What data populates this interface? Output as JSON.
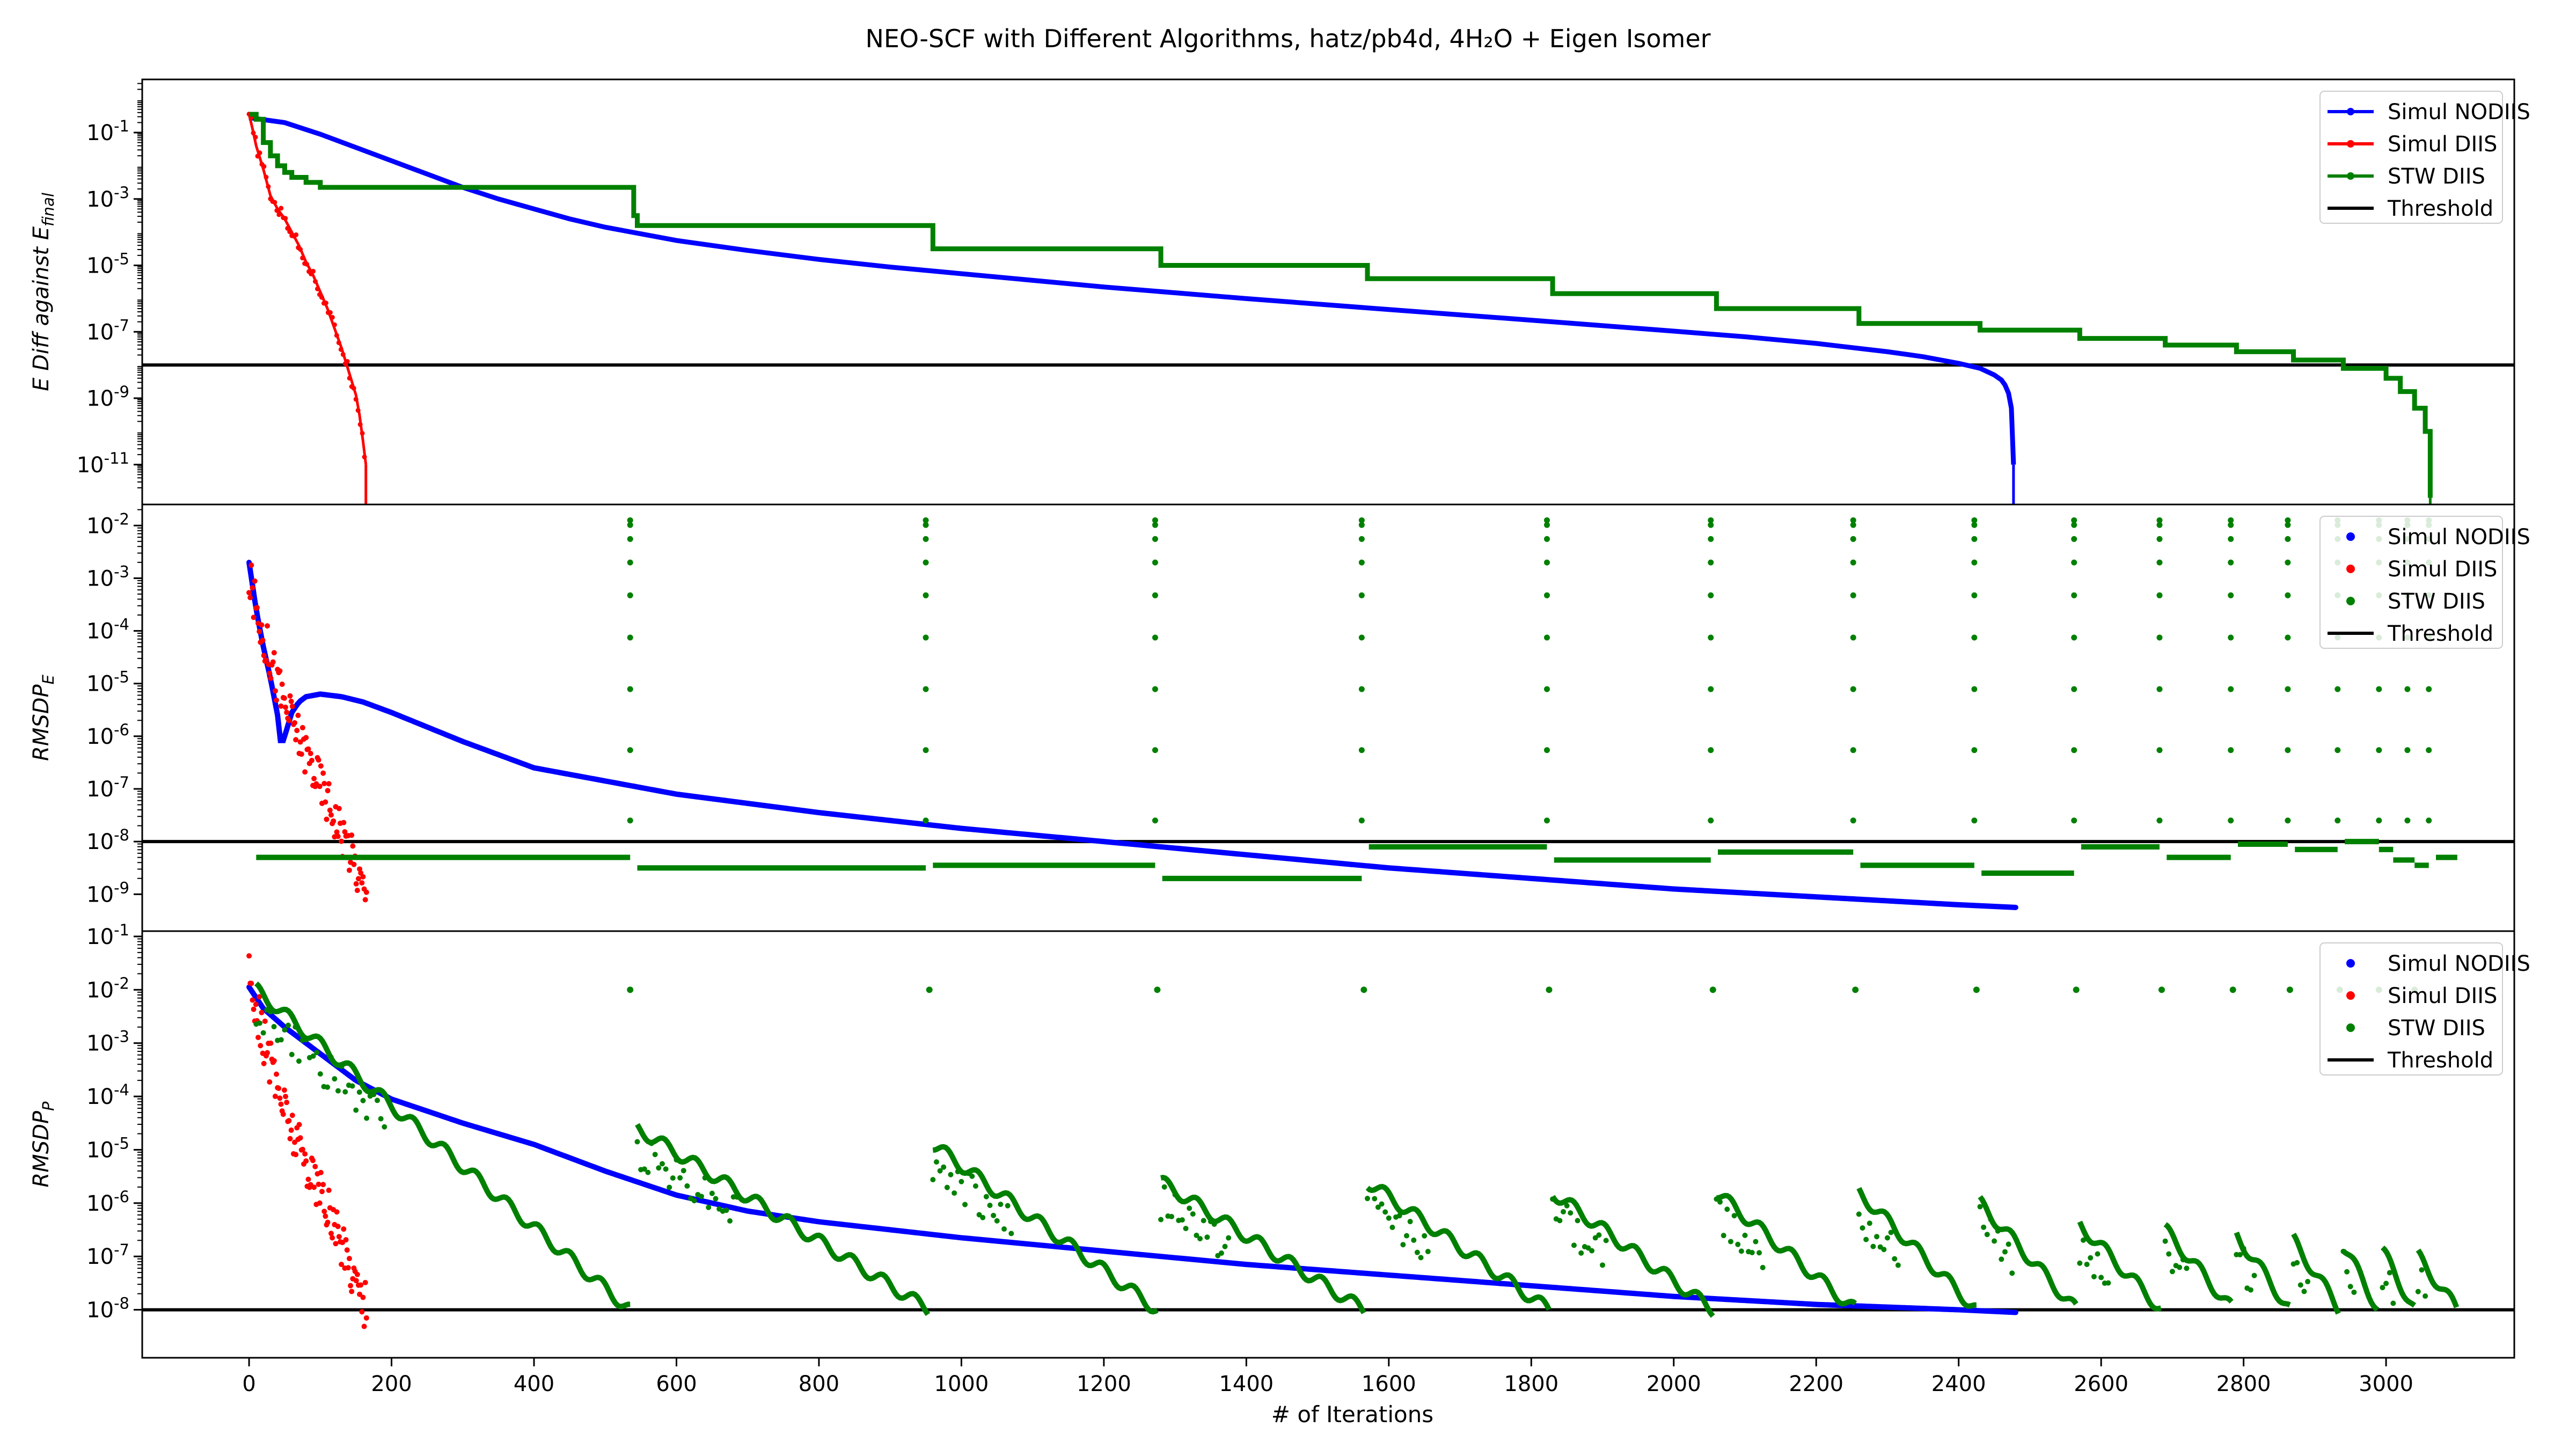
{
  "figure": {
    "title": "NEO-SCF with Different Algorithms, hatz/pb4d, 4H₂O + Eigen Isomer",
    "xlabel": "# of Iterations"
  },
  "chart_data": [
    {
      "type": "line",
      "ylabel": "E Diff against E_final",
      "yscale": "log",
      "ylim_exp": [
        -12.2,
        0.6
      ],
      "ytick_labels": [
        "10^-1",
        "10^-3",
        "10^-5",
        "10^-7",
        "10^-9",
        "10^-11"
      ],
      "ytick_exps": [
        -1,
        -3,
        -5,
        -7,
        -9,
        -11
      ],
      "xlim": [
        -150,
        3180
      ],
      "xticks": [
        0,
        200,
        400,
        600,
        800,
        1000,
        1200,
        1400,
        1600,
        1800,
        2000,
        2200,
        2400,
        2600,
        2800,
        3000
      ],
      "threshold_exp": -8,
      "legend": {
        "position": "upper right",
        "entries": [
          "Simul NODIIS",
          "Simul DIIS",
          "STW DIIS",
          "Threshold"
        ]
      },
      "series": [
        {
          "name": "Simul NODIIS",
          "color": "#0000ff",
          "style": "line-markers",
          "x": [
            0,
            50,
            100,
            150,
            200,
            250,
            300,
            350,
            400,
            450,
            500,
            600,
            700,
            800,
            900,
            1000,
            1200,
            1400,
            1600,
            1800,
            2000,
            2100,
            2200,
            2300,
            2350,
            2400,
            2430,
            2450,
            2460,
            2465,
            2470,
            2474,
            2477
          ],
          "y_exp": [
            -0.55,
            -0.7,
            -1.05,
            -1.45,
            -1.85,
            -2.25,
            -2.65,
            -3.0,
            -3.3,
            -3.6,
            -3.85,
            -4.25,
            -4.55,
            -4.82,
            -5.05,
            -5.25,
            -5.65,
            -6.0,
            -6.33,
            -6.65,
            -6.98,
            -7.15,
            -7.35,
            -7.6,
            -7.75,
            -7.95,
            -8.1,
            -8.3,
            -8.45,
            -8.6,
            -8.85,
            -9.3,
            -11.0
          ]
        },
        {
          "name": "Simul DIIS",
          "color": "#ff0000",
          "style": "line-markers",
          "x": [
            0,
            5,
            10,
            15,
            20,
            25,
            30,
            40,
            50,
            60,
            70,
            80,
            90,
            100,
            110,
            120,
            130,
            140,
            150,
            155,
            160,
            164
          ],
          "y_exp": [
            -0.45,
            -0.9,
            -1.4,
            -1.75,
            -2.1,
            -2.5,
            -2.9,
            -3.3,
            -3.6,
            -4.0,
            -4.4,
            -4.9,
            -5.3,
            -5.8,
            -6.3,
            -6.9,
            -7.5,
            -8.2,
            -8.9,
            -9.5,
            -10.3,
            -11.0
          ]
        },
        {
          "name": "STW DIIS",
          "color": "#008000",
          "style": "staircase",
          "x": [
            0,
            10,
            20,
            30,
            40,
            50,
            60,
            80,
            100,
            535,
            540,
            545,
            950,
            960,
            1270,
            1280,
            1560,
            1570,
            1820,
            1830,
            2050,
            2060,
            2250,
            2260,
            2420,
            2430,
            2560,
            2570,
            2680,
            2690,
            2780,
            2790,
            2860,
            2870,
            2930,
            2940,
            2980,
            3000,
            3020,
            3040,
            3055,
            3062
          ],
          "y_exp": [
            -0.45,
            -0.6,
            -1.3,
            -1.7,
            -2.0,
            -2.2,
            -2.35,
            -2.5,
            -2.65,
            -2.65,
            -3.5,
            -3.8,
            -3.8,
            -4.5,
            -4.5,
            -5.0,
            -5.0,
            -5.4,
            -5.4,
            -5.85,
            -5.85,
            -6.3,
            -6.3,
            -6.75,
            -6.75,
            -6.95,
            -6.95,
            -7.2,
            -7.2,
            -7.4,
            -7.4,
            -7.6,
            -7.6,
            -7.85,
            -7.85,
            -8.1,
            -8.1,
            -8.4,
            -8.8,
            -9.3,
            -10.0,
            -12.0
          ]
        },
        {
          "name": "Threshold",
          "color": "#000000",
          "style": "hline"
        }
      ]
    },
    {
      "type": "scatter",
      "ylabel": "RMSDP_E",
      "yscale": "log",
      "ylim_exp": [
        -9.7,
        -1.6
      ],
      "ytick_labels": [
        "10^-2",
        "10^-3",
        "10^-4",
        "10^-5",
        "10^-6",
        "10^-7",
        "10^-8",
        "10^-9"
      ],
      "ytick_exps": [
        -2,
        -3,
        -4,
        -5,
        -6,
        -7,
        -8,
        -9
      ],
      "xlim": [
        -150,
        3180
      ],
      "threshold_exp": -8,
      "legend": {
        "position": "upper right",
        "entries": [
          "Simul NODIIS",
          "Simul DIIS",
          "STW DIIS",
          "Threshold"
        ]
      },
      "series": [
        {
          "name": "Simul NODIIS",
          "color": "#0000ff",
          "style": "curve",
          "x": [
            0,
            10,
            20,
            30,
            40,
            45,
            50,
            60,
            70,
            80,
            100,
            130,
            160,
            200,
            300,
            400,
            600,
            800,
            1000,
            1200,
            1400,
            1600,
            1800,
            2000,
            2200,
            2400,
            2480
          ],
          "y_exp": [
            -2.7,
            -3.6,
            -4.3,
            -4.9,
            -5.6,
            -6.2,
            -6.0,
            -5.55,
            -5.35,
            -5.25,
            -5.2,
            -5.25,
            -5.35,
            -5.55,
            -6.1,
            -6.6,
            -7.1,
            -7.45,
            -7.75,
            -8.0,
            -8.25,
            -8.5,
            -8.7,
            -8.9,
            -9.05,
            -9.2,
            -9.25
          ]
        },
        {
          "name": "Simul DIIS",
          "color": "#ff0000",
          "style": "noisy",
          "x": [
            0,
            10,
            20,
            30,
            40,
            50,
            60,
            70,
            80,
            90,
            100,
            110,
            120,
            130,
            140,
            150,
            160,
            165
          ],
          "y_exp": [
            -3.0,
            -3.6,
            -4.1,
            -4.5,
            -5.0,
            -5.4,
            -5.7,
            -6.0,
            -6.3,
            -6.6,
            -6.9,
            -7.2,
            -7.5,
            -7.8,
            -8.1,
            -8.5,
            -8.9,
            -9.2
          ]
        },
        {
          "name": "STW DIIS",
          "color": "#008000",
          "style": "plateaus",
          "plateaus": [
            {
              "x0": 10,
              "x1": 535,
              "y_exp": -8.3
            },
            {
              "x0": 545,
              "x1": 950,
              "y_exp": -8.5
            },
            {
              "x0": 960,
              "x1": 1272,
              "y_exp": -8.45
            },
            {
              "x0": 1282,
              "x1": 1562,
              "y_exp": -8.7
            },
            {
              "x0": 1572,
              "x1": 1822,
              "y_exp": -8.1
            },
            {
              "x0": 1832,
              "x1": 2052,
              "y_exp": -8.35
            },
            {
              "x0": 2062,
              "x1": 2252,
              "y_exp": -8.2
            },
            {
              "x0": 2262,
              "x1": 2422,
              "y_exp": -8.45
            },
            {
              "x0": 2432,
              "x1": 2562,
              "y_exp": -8.6
            },
            {
              "x0": 2572,
              "x1": 2682,
              "y_exp": -8.1
            },
            {
              "x0": 2692,
              "x1": 2782,
              "y_exp": -8.3
            },
            {
              "x0": 2792,
              "x1": 2862,
              "y_exp": -8.05
            },
            {
              "x0": 2872,
              "x1": 2932,
              "y_exp": -8.15
            },
            {
              "x0": 2942,
              "x1": 2990,
              "y_exp": -8.0
            },
            {
              "x0": 2990,
              "x1": 3010,
              "y_exp": -8.15
            },
            {
              "x0": 3010,
              "x1": 3040,
              "y_exp": -8.35
            },
            {
              "x0": 3040,
              "x1": 3060,
              "y_exp": -8.45
            },
            {
              "x0": 3070,
              "x1": 3100,
              "y_exp": -8.3
            }
          ],
          "spikes": [
            {
              "x": 535,
              "top_exp": -1.9
            },
            {
              "x": 950,
              "top_exp": -1.9
            },
            {
              "x": 1272,
              "top_exp": -1.9
            },
            {
              "x": 1562,
              "top_exp": -1.9
            },
            {
              "x": 1822,
              "top_exp": -1.9
            },
            {
              "x": 2052,
              "top_exp": -1.9
            },
            {
              "x": 2252,
              "top_exp": -1.9
            },
            {
              "x": 2422,
              "top_exp": -1.9
            },
            {
              "x": 2562,
              "top_exp": -1.9
            },
            {
              "x": 2682,
              "top_exp": -1.9
            },
            {
              "x": 2782,
              "top_exp": -1.9
            },
            {
              "x": 2862,
              "top_exp": -1.9
            },
            {
              "x": 2932,
              "top_exp": -1.9
            },
            {
              "x": 2990,
              "top_exp": -1.9
            },
            {
              "x": 3030,
              "top_exp": -1.9
            },
            {
              "x": 3060,
              "top_exp": -1.9
            }
          ]
        }
      ]
    },
    {
      "type": "scatter",
      "ylabel": "RMSDP_P",
      "yscale": "log",
      "ylim_exp": [
        -8.9,
        -0.9
      ],
      "ytick_labels": [
        "10^-1",
        "10^-2",
        "10^-3",
        "10^-4",
        "10^-5",
        "10^-6",
        "10^-7",
        "10^-8"
      ],
      "ytick_exps": [
        -1,
        -2,
        -3,
        -4,
        -5,
        -6,
        -7,
        -8
      ],
      "xlim": [
        -150,
        3180
      ],
      "threshold_exp": -8,
      "legend": {
        "position": "upper right",
        "entries": [
          "Simul NODIIS",
          "Simul DIIS",
          "STW DIIS",
          "Threshold"
        ]
      },
      "series": [
        {
          "name": "Simul NODIIS",
          "color": "#0000ff",
          "style": "curve",
          "x": [
            0,
            20,
            50,
            100,
            150,
            200,
            300,
            400,
            500,
            600,
            700,
            800,
            1000,
            1200,
            1400,
            1600,
            1800,
            2000,
            2200,
            2400,
            2480
          ],
          "y_exp": [
            -1.95,
            -2.35,
            -2.7,
            -3.2,
            -3.7,
            -4.05,
            -4.5,
            -4.9,
            -5.4,
            -5.85,
            -6.15,
            -6.35,
            -6.65,
            -6.9,
            -7.15,
            -7.35,
            -7.55,
            -7.75,
            -7.9,
            -8.0,
            -8.05
          ]
        },
        {
          "name": "Simul DIIS",
          "color": "#ff0000",
          "style": "noisy",
          "x": [
            0,
            10,
            20,
            30,
            40,
            50,
            60,
            70,
            80,
            90,
            100,
            110,
            120,
            130,
            140,
            150,
            160,
            165
          ],
          "y_exp": [
            -1.7,
            -2.3,
            -2.9,
            -3.4,
            -3.8,
            -4.2,
            -4.6,
            -4.9,
            -5.2,
            -5.5,
            -5.8,
            -6.1,
            -6.4,
            -6.8,
            -7.1,
            -7.4,
            -7.8,
            -8.0
          ]
        },
        {
          "name": "STW DIIS",
          "color": "#008000",
          "style": "sawtooth",
          "segments": [
            {
              "x0": 10,
              "x1": 535,
              "y0_exp": -2.0,
              "y1_exp": -8.0
            },
            {
              "x0": 545,
              "x1": 955,
              "y0_exp": -4.6,
              "y1_exp": -8.0
            },
            {
              "x0": 960,
              "x1": 1275,
              "y0_exp": -4.9,
              "y1_exp": -8.0
            },
            {
              "x0": 1280,
              "x1": 1565,
              "y0_exp": -5.6,
              "y1_exp": -8.0
            },
            {
              "x0": 1570,
              "x1": 1825,
              "y0_exp": -5.6,
              "y1_exp": -8.0
            },
            {
              "x0": 1830,
              "x1": 2055,
              "y0_exp": -5.8,
              "y1_exp": -8.0
            },
            {
              "x0": 2060,
              "x1": 2255,
              "y0_exp": -5.8,
              "y1_exp": -8.0
            },
            {
              "x0": 2260,
              "x1": 2425,
              "y0_exp": -5.8,
              "y1_exp": -8.0
            },
            {
              "x0": 2430,
              "x1": 2565,
              "y0_exp": -6.0,
              "y1_exp": -8.0
            },
            {
              "x0": 2570,
              "x1": 2685,
              "y0_exp": -6.4,
              "y1_exp": -8.0
            },
            {
              "x0": 2690,
              "x1": 2785,
              "y0_exp": -6.5,
              "y1_exp": -8.0
            },
            {
              "x0": 2790,
              "x1": 2865,
              "y0_exp": -6.6,
              "y1_exp": -8.0
            },
            {
              "x0": 2870,
              "x1": 2935,
              "y0_exp": -6.7,
              "y1_exp": -8.0
            },
            {
              "x0": 2940,
              "x1": 2990,
              "y0_exp": -6.8,
              "y1_exp": -8.0
            },
            {
              "x0": 2995,
              "x1": 3040,
              "y0_exp": -6.9,
              "y1_exp": -8.0
            },
            {
              "x0": 3045,
              "x1": 3100,
              "y0_exp": -7.0,
              "y1_exp": -8.0
            }
          ],
          "spikes": [
            {
              "x": 535,
              "top_exp": -2.0
            },
            {
              "x": 955,
              "top_exp": -2.0
            },
            {
              "x": 1275,
              "top_exp": -2.0
            },
            {
              "x": 1565,
              "top_exp": -2.0
            },
            {
              "x": 1825,
              "top_exp": -2.0
            },
            {
              "x": 2055,
              "top_exp": -2.0
            },
            {
              "x": 2255,
              "top_exp": -2.0
            },
            {
              "x": 2425,
              "top_exp": -2.0
            },
            {
              "x": 2565,
              "top_exp": -2.0
            },
            {
              "x": 2685,
              "top_exp": -2.0
            },
            {
              "x": 2785,
              "top_exp": -2.0
            },
            {
              "x": 2865,
              "top_exp": -2.0
            },
            {
              "x": 2935,
              "top_exp": -2.0
            },
            {
              "x": 2990,
              "top_exp": -2.0
            },
            {
              "x": 3040,
              "top_exp": -2.0
            }
          ]
        }
      ]
    }
  ]
}
